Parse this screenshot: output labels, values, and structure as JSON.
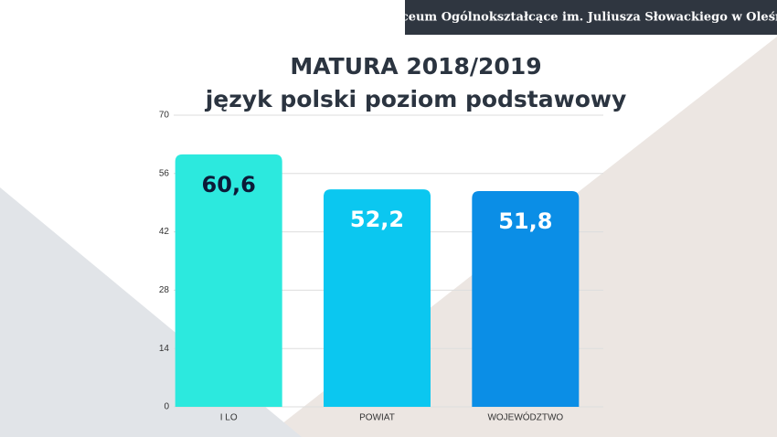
{
  "header": {
    "title": "I Liceum Ogólnokształcące im. Juliusza Słowackiego w Oleśnicy"
  },
  "chart_data": {
    "type": "bar",
    "title": "MATURA 2018/2019",
    "subtitle": "język polski poziom podstawowy",
    "categories": [
      "I LO",
      "POWIAT",
      "WOJEWÓDZTWO"
    ],
    "values": [
      60.6,
      52.2,
      51.8
    ],
    "value_labels": [
      "60,6",
      "52,2",
      "51,8"
    ],
    "colors": [
      "#2ce9de",
      "#0bc7f0",
      "#0b8ee6"
    ],
    "value_label_colors": [
      "#0c1a38",
      "#ffffff",
      "#ffffff"
    ],
    "ylim": [
      0,
      70
    ],
    "yticks": [
      0,
      14,
      28,
      42,
      56,
      70
    ],
    "grid": true
  }
}
